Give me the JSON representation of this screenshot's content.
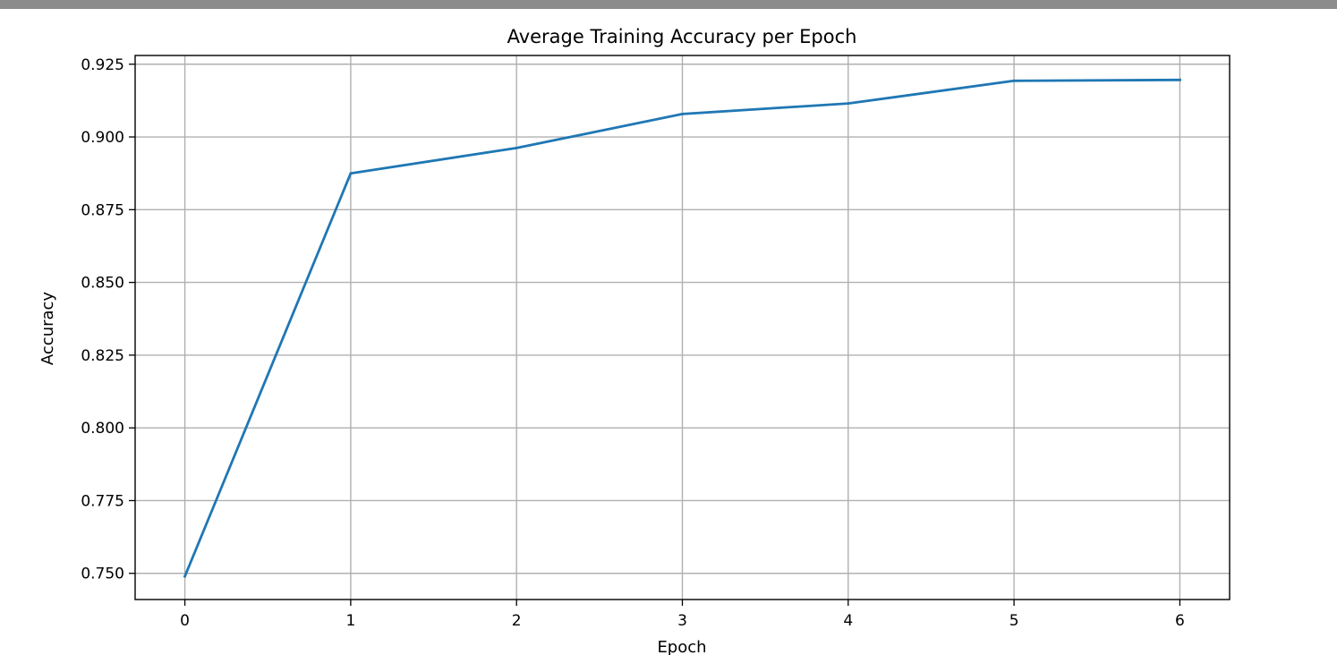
{
  "colors": {
    "top_bar": "#8c8c8c",
    "series_line": "#1f77b4",
    "grid": "#b0b0b0",
    "axes": "#000000",
    "background": "#ffffff"
  },
  "chart_data": {
    "type": "line",
    "title": "Average Training Accuracy per Epoch",
    "xlabel": "Epoch",
    "ylabel": "Accuracy",
    "x": [
      0,
      1,
      2,
      3,
      4,
      5,
      6
    ],
    "series": [
      {
        "values": [
          0.749,
          0.8875,
          0.8962,
          0.9079,
          0.9115,
          0.9193,
          0.9196
        ]
      }
    ],
    "xlim": [
      -0.3,
      6.3
    ],
    "ylim": [
      0.741,
      0.928
    ],
    "xticks": [
      0,
      1,
      2,
      3,
      4,
      5,
      6
    ],
    "xtick_labels": [
      "0",
      "1",
      "2",
      "3",
      "4",
      "5",
      "6"
    ],
    "yticks": [
      0.75,
      0.775,
      0.8,
      0.825,
      0.85,
      0.875,
      0.9,
      0.925
    ],
    "ytick_labels": [
      "0.750",
      "0.775",
      "0.800",
      "0.825",
      "0.850",
      "0.875",
      "0.900",
      "0.925"
    ],
    "grid": true,
    "legend": "none"
  }
}
